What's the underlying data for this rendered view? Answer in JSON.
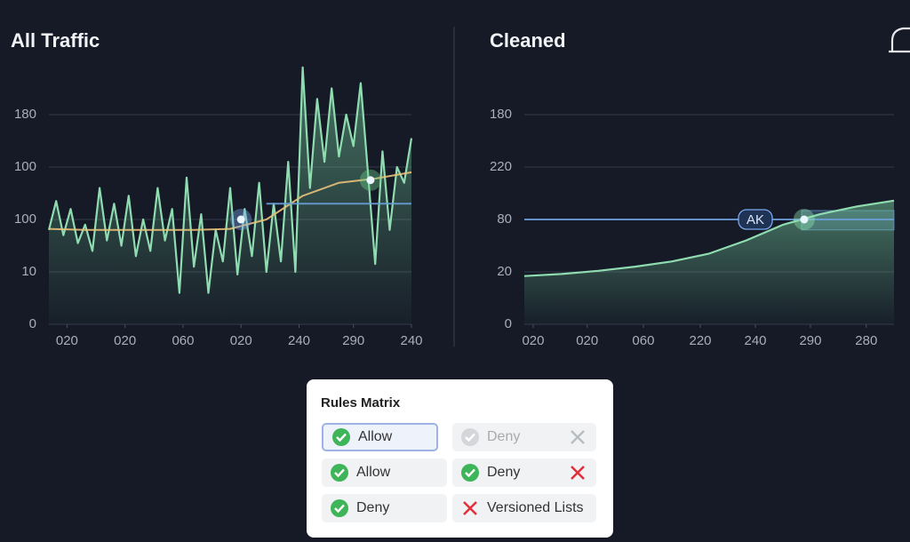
{
  "chart_data": [
    {
      "type": "line",
      "title": "All Traffic",
      "xlim": [
        0,
        100
      ],
      "ylim": [
        0,
        5
      ],
      "xticks": [
        {
          "value": 5,
          "label": "020"
        },
        {
          "value": 21,
          "label": "020"
        },
        {
          "value": 37,
          "label": "060"
        },
        {
          "value": 53,
          "label": "020"
        },
        {
          "value": 69,
          "label": "240"
        },
        {
          "value": 84,
          "label": "290"
        },
        {
          "value": 100,
          "label": "240"
        }
      ],
      "yticks": [
        0,
        {
          "value": 1,
          "label": "10"
        },
        {
          "value": 2,
          "label": "100"
        },
        {
          "value": 3,
          "label": "100"
        },
        {
          "value": 4,
          "label": "180"
        }
      ],
      "grid": true,
      "series": [
        {
          "color": "#8fdcb0",
          "area": true,
          "x": [
            0,
            2,
            4,
            6,
            8,
            10,
            12,
            14,
            16,
            18,
            20,
            22,
            24,
            26,
            28,
            30,
            32,
            34,
            36,
            38,
            40,
            42,
            44,
            46,
            48,
            50,
            52,
            54,
            56,
            58,
            60,
            62,
            64,
            66,
            68,
            70,
            72,
            74,
            76,
            78,
            80,
            82,
            84,
            86,
            88,
            90,
            92,
            94,
            96,
            98,
            100
          ],
          "values": [
            1.8,
            2.35,
            1.7,
            2.2,
            1.55,
            1.9,
            1.4,
            2.6,
            1.6,
            2.3,
            1.5,
            2.45,
            1.3,
            2.0,
            1.4,
            2.6,
            1.6,
            2.2,
            0.6,
            2.8,
            1.1,
            2.1,
            0.6,
            1.8,
            1.2,
            2.6,
            0.95,
            2.2,
            1.3,
            2.7,
            1.0,
            2.3,
            1.2,
            3.1,
            1.0,
            4.9,
            2.6,
            4.3,
            3.1,
            4.5,
            3.2,
            4.0,
            3.4,
            4.6,
            2.9,
            1.15,
            3.3,
            1.8,
            3.0,
            2.7,
            3.55
          ]
        },
        {
          "color": "#e8c27a",
          "x": [
            0,
            10,
            20,
            30,
            40,
            50,
            60,
            70,
            80,
            90,
            100
          ],
          "values": [
            1.82,
            1.8,
            1.8,
            1.8,
            1.8,
            1.82,
            2.0,
            2.45,
            2.7,
            2.78,
            2.9
          ]
        },
        {
          "color": "#6a9fd8",
          "x": [
            60,
            100
          ],
          "values": [
            2.3,
            2.3
          ]
        }
      ],
      "markers": [
        {
          "x": 53,
          "y": 2,
          "color": "#7aa8f0"
        },
        {
          "x": 88.7,
          "y": 2.75,
          "color": "#6fd08a"
        }
      ]
    },
    {
      "type": "line",
      "title": "Cleaned",
      "xlim": [
        0,
        100
      ],
      "ylim": [
        0,
        5
      ],
      "xticks": [
        {
          "value": 2.4,
          "label": "020"
        },
        {
          "value": 17,
          "label": "020"
        },
        {
          "value": 32.2,
          "label": "060"
        },
        {
          "value": 47.6,
          "label": "220"
        },
        {
          "value": 62.5,
          "label": "240"
        },
        {
          "value": 77.4,
          "label": "290"
        },
        {
          "value": 92.5,
          "label": "280"
        }
      ],
      "yticks": [
        0,
        {
          "value": 1,
          "label": "20"
        },
        {
          "value": 2,
          "label": "80"
        },
        {
          "value": 3,
          "label": "220"
        },
        {
          "value": 4,
          "label": "180"
        }
      ],
      "grid": true,
      "series": [
        {
          "color": "#8fdcb0",
          "area": true,
          "x": [
            0,
            10,
            20,
            30,
            40,
            50,
            60,
            70,
            80,
            90,
            100
          ],
          "values": [
            0.92,
            0.96,
            1.02,
            1.1,
            1.2,
            1.35,
            1.6,
            1.9,
            2.1,
            2.25,
            2.36
          ]
        },
        {
          "color": "#6a9fd8",
          "x": [
            0,
            100
          ],
          "values": [
            2,
            2
          ]
        }
      ],
      "band": {
        "x": [
          75,
          100
        ],
        "y": [
          1.8,
          2.17
        ],
        "color": "#6a9fd8"
      },
      "annotations": [
        {
          "text": "AK",
          "x": 62.5,
          "y": 2
        }
      ],
      "markers": [
        {
          "x": 75.7,
          "y": 2,
          "color": "#8fe8b0"
        }
      ]
    }
  ],
  "rules_matrix": {
    "title": "Rules Matrix",
    "cells": [
      [
        "Allow",
        "Deny"
      ],
      [
        "Allow",
        "Deny"
      ],
      [
        "Deny",
        "Versioned Lists"
      ]
    ]
  }
}
